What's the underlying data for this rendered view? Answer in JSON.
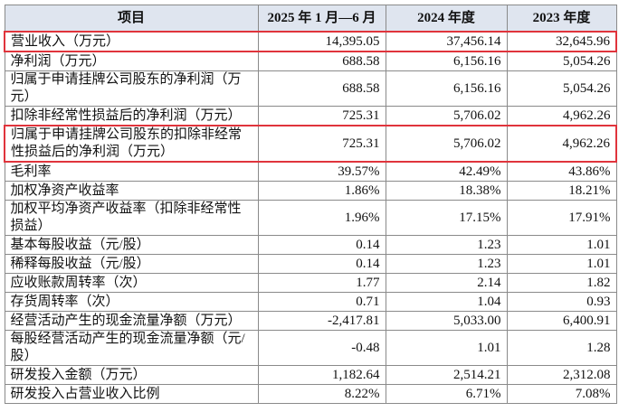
{
  "table": {
    "header": [
      "项目",
      "2025 年 1 月—6 月",
      "2024 年度",
      "2023 年度"
    ],
    "rows": [
      [
        "营业收入（万元）",
        "14,395.05",
        "37,456.14",
        "32,645.96"
      ],
      [
        "净利润（万元）",
        "688.58",
        "6,156.16",
        "5,054.26"
      ],
      [
        "归属于申请挂牌公司股东的净利润（万元）",
        "688.58",
        "6,156.16",
        "5,054.26"
      ],
      [
        "扣除非经常性损益后的净利润（万元）",
        "725.31",
        "5,706.02",
        "4,962.26"
      ],
      [
        "归属于申请挂牌公司股东的扣除非经常性损益后的净利润（万元）",
        "725.31",
        "5,706.02",
        "4,962.26"
      ],
      [
        "毛利率",
        "39.57%",
        "42.49%",
        "43.86%"
      ],
      [
        "加权净资产收益率",
        "1.86%",
        "18.38%",
        "18.21%"
      ],
      [
        "加权平均净资产收益率（扣除非经常性损益）",
        "1.96%",
        "17.15%",
        "17.91%"
      ],
      [
        "基本每股收益（元/股）",
        "0.14",
        "1.23",
        "1.01"
      ],
      [
        "稀释每股收益（元/股）",
        "0.14",
        "1.23",
        "1.01"
      ],
      [
        "应收账款周转率（次）",
        "1.77",
        "2.14",
        "1.82"
      ],
      [
        "存货周转率（次）",
        "0.71",
        "1.04",
        "0.93"
      ],
      [
        "经营活动产生的现金流量净额（万元）",
        "-2,417.81",
        "5,033.00",
        "6,400.91"
      ],
      [
        "每股经营活动产生的现金流量净额（元/股）",
        "-0.48",
        "1.01",
        "1.28"
      ],
      [
        "研发投入金额（万元）",
        "1,182.64",
        "2,514.21",
        "2,312.08"
      ],
      [
        "研发投入占营业收入比例",
        "8.22%",
        "6.71%",
        "7.08%"
      ]
    ]
  }
}
